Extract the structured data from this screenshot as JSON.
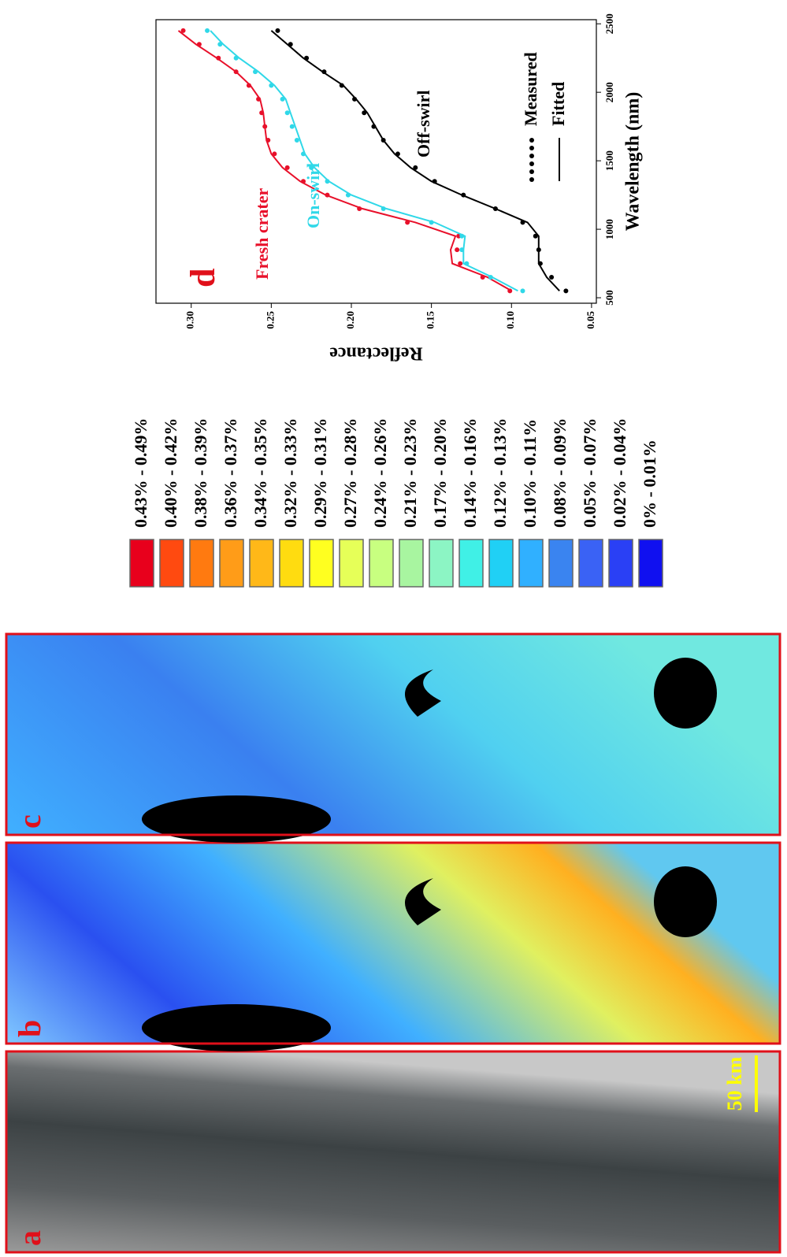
{
  "panels": [
    {
      "label": "a",
      "scale_bar": "50 km"
    },
    {
      "label": "b"
    },
    {
      "label": "c"
    }
  ],
  "colorbar": {
    "items": [
      {
        "label": "0.43% - 0.49%",
        "color": "#e8001c"
      },
      {
        "label": "0.40% - 0.42%",
        "color": "#ff4a10"
      },
      {
        "label": "0.38% - 0.39%",
        "color": "#ff7a10"
      },
      {
        "label": "0.36% - 0.37%",
        "color": "#ff9c18"
      },
      {
        "label": "0.34% - 0.35%",
        "color": "#ffb818"
      },
      {
        "label": "0.32% - 0.33%",
        "color": "#ffdc10"
      },
      {
        "label": "0.29% - 0.31%",
        "color": "#ffff20"
      },
      {
        "label": "0.27% - 0.28%",
        "color": "#e6ff58"
      },
      {
        "label": "0.24% - 0.26%",
        "color": "#c8ff80"
      },
      {
        "label": "0.21% - 0.23%",
        "color": "#a8f5a0"
      },
      {
        "label": "0.17% - 0.20%",
        "color": "#8cf5c4"
      },
      {
        "label": "0.14% - 0.16%",
        "color": "#40f0e6"
      },
      {
        "label": "0.12% - 0.13%",
        "color": "#20d0f5"
      },
      {
        "label": "0.10% - 0.11%",
        "color": "#30b0ff"
      },
      {
        "label": "0.08% - 0.09%",
        "color": "#3a84f0"
      },
      {
        "label": "0.05% - 0.07%",
        "color": "#3a62f5"
      },
      {
        "label": "0.02% - 0.04%",
        "color": "#2a40f5"
      },
      {
        "label": "0% - 0.01%",
        "color": "#1010f0"
      }
    ]
  },
  "chart_data": {
    "type": "line",
    "label": "d",
    "xlabel": "Wavelength (nm)",
    "ylabel": "Reflectance",
    "x": [
      550,
      650,
      750,
      850,
      950,
      1050,
      1150,
      1250,
      1350,
      1450,
      1550,
      1650,
      1750,
      1850,
      1950,
      2050,
      2150,
      2250,
      2350,
      2450
    ],
    "xlim": [
      460,
      2530
    ],
    "xticks": [
      500,
      1000,
      1500,
      2000,
      2500
    ],
    "ylim": [
      0.047,
      0.322
    ],
    "yticks": [
      {
        "value": 0.05,
        "label": "0.05"
      },
      {
        "value": 0.1,
        "label": "0.10"
      },
      {
        "value": 0.15,
        "label": "0.15"
      },
      {
        "value": 0.2,
        "label": "0.20"
      },
      {
        "value": 0.25,
        "label": "0.25"
      },
      {
        "value": 0.3,
        "label": "0.30"
      }
    ],
    "legend": {
      "measured": "Measured",
      "fitted": "Fitted"
    },
    "series": [
      {
        "name": "Fresh crater",
        "color": "#e8102a",
        "measured": [
          0.101,
          0.118,
          0.132,
          0.134,
          0.133,
          0.165,
          0.195,
          0.215,
          0.23,
          0.24,
          0.248,
          0.252,
          0.254,
          0.256,
          0.258,
          0.264,
          0.272,
          0.283,
          0.295,
          0.305
        ],
        "fitted": [
          0.1,
          0.115,
          0.137,
          0.138,
          0.135,
          0.16,
          0.193,
          0.216,
          0.232,
          0.243,
          0.25,
          0.253,
          0.254,
          0.255,
          0.257,
          0.263,
          0.272,
          0.284,
          0.297,
          0.308
        ]
      },
      {
        "name": "On-swirl",
        "color": "#30d8e8",
        "measured": [
          0.093,
          0.113,
          0.128,
          0.131,
          0.131,
          0.15,
          0.18,
          0.202,
          0.215,
          0.225,
          0.23,
          0.234,
          0.237,
          0.24,
          0.243,
          0.25,
          0.26,
          0.272,
          0.282,
          0.29
        ],
        "fitted": [
          0.096,
          0.112,
          0.13,
          0.13,
          0.129,
          0.148,
          0.178,
          0.2,
          0.214,
          0.223,
          0.229,
          0.232,
          0.235,
          0.238,
          0.241,
          0.248,
          0.258,
          0.27,
          0.28,
          0.288
        ]
      },
      {
        "name": "Off-swirl",
        "color": "#000000",
        "measured": [
          0.066,
          0.075,
          0.082,
          0.083,
          0.085,
          0.093,
          0.11,
          0.13,
          0.148,
          0.16,
          0.171,
          0.18,
          0.186,
          0.192,
          0.198,
          0.206,
          0.217,
          0.228,
          0.238,
          0.246
        ],
        "fitted": [
          0.07,
          0.078,
          0.083,
          0.083,
          0.083,
          0.09,
          0.11,
          0.131,
          0.15,
          0.163,
          0.173,
          0.18,
          0.185,
          0.19,
          0.197,
          0.205,
          0.218,
          0.23,
          0.24,
          0.25
        ]
      }
    ]
  }
}
